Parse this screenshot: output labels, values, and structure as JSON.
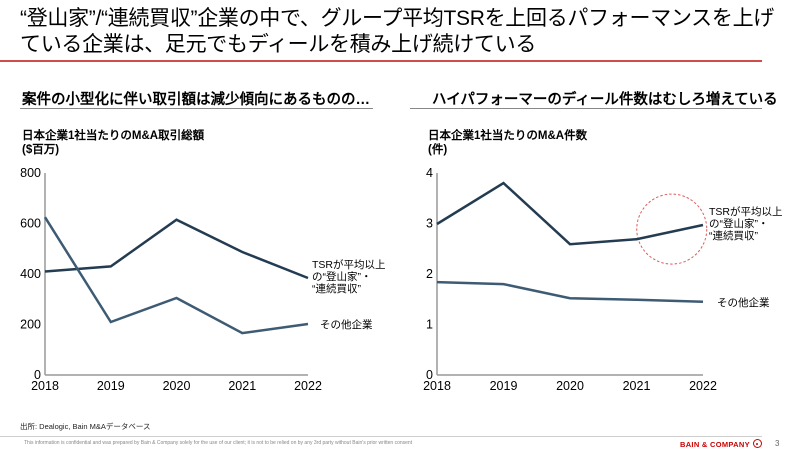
{
  "header": {
    "title": "“登山家”/“連続買収”企業の中で、グループ平均TSRを上回るパフォーマンスを上げている企業は、足元でもディールを積み上げ続けている"
  },
  "colors": {
    "accent_red": "#d14b4b",
    "series_dark": "#243c51",
    "series_light": "#3e5b74",
    "highlight_circle": "#e05a5a",
    "brand_red": "#cc0000"
  },
  "left_panel": {
    "heading": "案件の小型化に伴い取引額は減少傾向にあるものの…",
    "y_title_line1": "日本企業1社当たりのM&A取引総額",
    "y_title_line2": "($百万)"
  },
  "right_panel": {
    "heading": "ハイパフォーマーのディール件数はむしろ増えている",
    "y_title_line1": "日本企業1社当たりのM&A件数",
    "y_title_line2": "(件)"
  },
  "chart_data": [
    {
      "type": "line",
      "title": "日本企業1社当たりのM&A取引総額",
      "xlabel": "",
      "ylabel": "($百万)",
      "categories": [
        "2018",
        "2019",
        "2020",
        "2021",
        "2022"
      ],
      "ylim": [
        0,
        800
      ],
      "yticks": [
        "0",
        "200",
        "400",
        "600",
        "800"
      ],
      "grid": false,
      "series": [
        {
          "name": "TSRが平均以上の“登山家”・“連続買収”",
          "label_lines": [
            "TSRが平均以上",
            "の“登山家”・",
            "“連続買収”"
          ],
          "values": [
            410,
            430,
            615,
            487,
            384
          ]
        },
        {
          "name": "その他企業",
          "label_lines": [
            "その他企業"
          ],
          "values": [
            625,
            210,
            305,
            166,
            202
          ]
        }
      ]
    },
    {
      "type": "line",
      "title": "日本企業1社当たりのM&A件数",
      "xlabel": "",
      "ylabel": "(件)",
      "categories": [
        "2018",
        "2019",
        "2020",
        "2021",
        "2022"
      ],
      "ylim": [
        0,
        4
      ],
      "yticks": [
        "0",
        "1",
        "2",
        "3",
        "4"
      ],
      "grid": false,
      "highlight": "dashed red circle around 2021–2022 of high performers",
      "series": [
        {
          "name": "TSRが平均以上の“登山家”・“連続買収”",
          "label_lines": [
            "TSRが平均以上",
            "の“登山家”・",
            "“連続買収”"
          ],
          "values": [
            2.99,
            3.8,
            2.59,
            2.69,
            2.97
          ]
        },
        {
          "name": "その他企業",
          "label_lines": [
            "その他企業"
          ],
          "values": [
            1.84,
            1.8,
            1.52,
            1.49,
            1.45
          ]
        }
      ]
    }
  ],
  "footer": {
    "source": "出所: Dealogic, Bain M&Aデータベース",
    "disclaimer": "This information is confidential and was prepared by Bain & Company solely for the use of our client; it is not to be relied on by any 3rd party without Bain's prior written consent",
    "brand": "BAIN & COMPANY",
    "page_number": "3"
  }
}
